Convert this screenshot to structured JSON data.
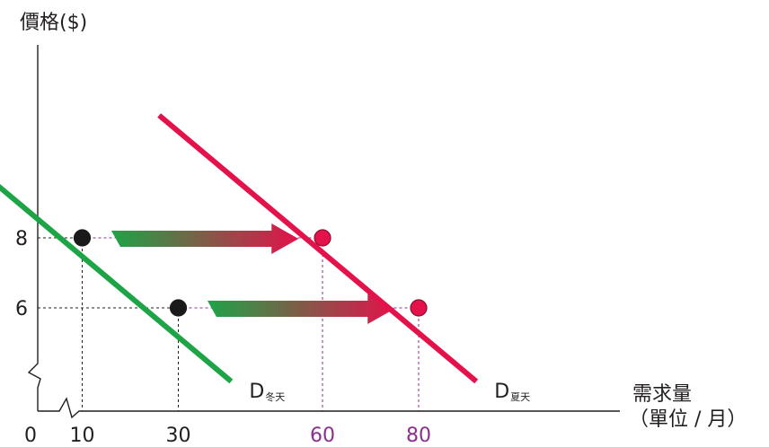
{
  "chart_data": {
    "type": "line",
    "title": "",
    "ylabel": "價格($)",
    "xlabel": "需求量",
    "xlabel_unit": "（單位 / 月）",
    "origin_label": "0",
    "x_ticks": [
      {
        "value": 10,
        "label": "10",
        "color": "#231f20"
      },
      {
        "value": 30,
        "label": "30",
        "color": "#231f20"
      },
      {
        "value": 60,
        "label": "60",
        "color": "#8b2f8f"
      },
      {
        "value": 80,
        "label": "80",
        "color": "#8b2f8f"
      }
    ],
    "y_ticks": [
      {
        "value": 8,
        "label": "8"
      },
      {
        "value": 6,
        "label": "6"
      }
    ],
    "axis_breaks": true,
    "series": [
      {
        "name": "D冬天",
        "name_main": "D",
        "name_sub": "冬天",
        "color": "#1da446",
        "line": [
          [
            -25,
            11.5
          ],
          [
            41,
            3.9
          ]
        ],
        "points": [
          [
            10,
            8
          ],
          [
            30,
            6
          ]
        ],
        "point_color": "#1a1a1a"
      },
      {
        "name": "D夏天",
        "name_main": "D",
        "name_sub": "夏天",
        "color": "#e3124b",
        "line": [
          [
            26,
            11.5
          ],
          [
            92,
            3.9
          ]
        ],
        "points": [
          [
            60,
            8
          ],
          [
            80,
            6
          ]
        ],
        "point_color": "#e3124b"
      }
    ],
    "shift_arrows": [
      {
        "y": 8,
        "from": 17,
        "to": 55
      },
      {
        "y": 6,
        "from": 37,
        "to": 75
      }
    ],
    "guide_colors": {
      "black": "#231f20",
      "purple": "#8b2f8f"
    },
    "arrow_gradient": {
      "start": "#1da446",
      "end": "#e3124b"
    }
  }
}
